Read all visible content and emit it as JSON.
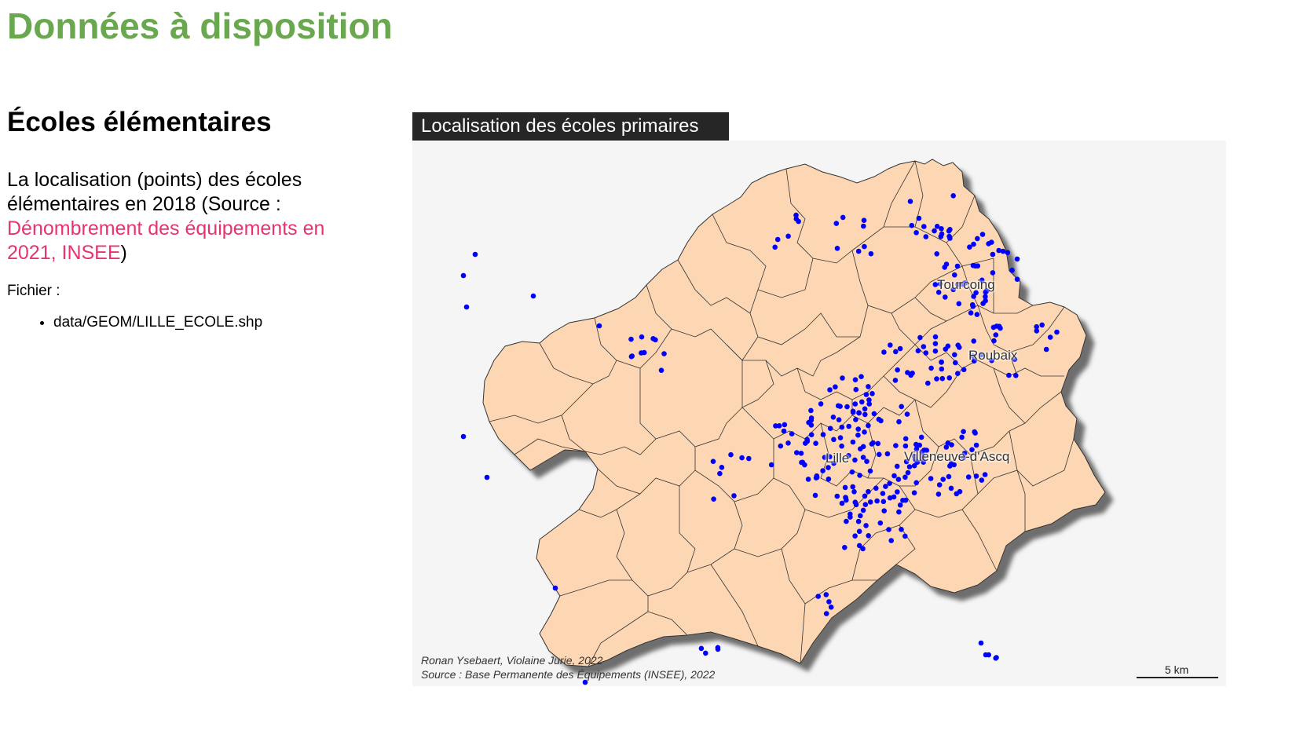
{
  "page": {
    "title": "Données à disposition"
  },
  "section": {
    "title": "Écoles élémentaires",
    "desc_before": "La localisation (points) des écoles élémentaires en 2018 (Source : ",
    "desc_link": "Dénombrement des équipements en 2021, INSEE",
    "desc_after": ")",
    "file_label": "Fichier :",
    "files": [
      "data/GEOM/LILLE_ECOLE.shp"
    ]
  },
  "map": {
    "title": "Localisation des écoles primaires",
    "credit_line1": "Ronan Ysebaert, Violaine Jurie, 2022",
    "credit_line2": "Source : Base Permanente des Équipements (INSEE), 2022",
    "scale_label": "5 km",
    "cities": [
      "Tourcoing",
      "Roubaix",
      "Lille",
      "Villeneuve-d'Ascq"
    ],
    "colors": {
      "territory_fill": "#fdd7b4",
      "border": "#333333",
      "school_point": "#0000ff",
      "panel_bg": "#f5f5f5",
      "title_bg": "#262626"
    }
  }
}
